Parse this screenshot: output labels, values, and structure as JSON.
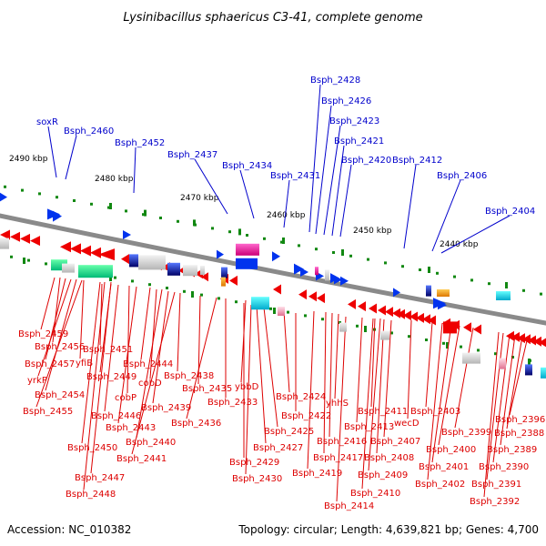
{
  "title": "Lysinibacillus sphaericus C3-41, complete genome",
  "accession": "Accession: NC_010382",
  "topology": "Topology: circular; Length: 4,639,821 bp; Genes: 4,700",
  "scale_labels": [
    "2490 kbp",
    "2480 kbp",
    "2470 kbp",
    "2460 kbp",
    "2450 kbp",
    "2440 kbp"
  ],
  "forward_labels": [
    "soxR",
    "Bsph_2460",
    "Bsph_2452",
    "Bsph_2437",
    "Bsph_2434",
    "Bsph_2431",
    "Bsph_2428",
    "Bsph_2426",
    "Bsph_2423",
    "Bsph_2421",
    "Bsph_2420",
    "Bsph_2412",
    "Bsph_2406",
    "Bsph_2404"
  ],
  "reverse_labels": [
    "Bsph_2459",
    "Bsph_2456",
    "Bsph_2457",
    "yfiB",
    "Bsph_2451",
    "yrkP",
    "Bsph_2449",
    "Bsph_2444",
    "cobD",
    "Bsph_2438",
    "Bsph_2435",
    "ybbD",
    "Bsph_2454",
    "cobP",
    "Bsph_2433",
    "Bsph_2455",
    "Bsph_2439",
    "Bsph_2446",
    "Bsph_2436",
    "Bsph_2443",
    "Bsph_2440",
    "Bsph_2450",
    "Bsph_2441",
    "Bsph_2447",
    "Bsph_2448",
    "Bsph_2424",
    "yhhS",
    "Bsph_2422",
    "Bsph_2425",
    "Bsph_2427",
    "Bsph_2429",
    "Bsph_2430",
    "Bsph_2416",
    "Bsph_2417",
    "Bsph_2419",
    "Bsph_2414",
    "Bsph_2411",
    "wecD",
    "Bsph_2413",
    "Bsph_2407",
    "Bsph_2408",
    "Bsph_2409",
    "Bsph_2410",
    "Bsph_2403",
    "Bsph_2399",
    "Bsph_2400",
    "Bsph_2401",
    "Bsph_2402",
    "Bsph_2396",
    "Bsph_2388",
    "Bsph_2389",
    "Bsph_2390",
    "Bsph_2391",
    "Bsph_2392"
  ],
  "colors": {
    "forward_label": "#0000cc",
    "reverse_label": "#dd0000",
    "forward_gene": "#0033ee",
    "reverse_gene": "#ee0000",
    "backbone": "#8a8a8a",
    "gc_marker": "#118811"
  }
}
